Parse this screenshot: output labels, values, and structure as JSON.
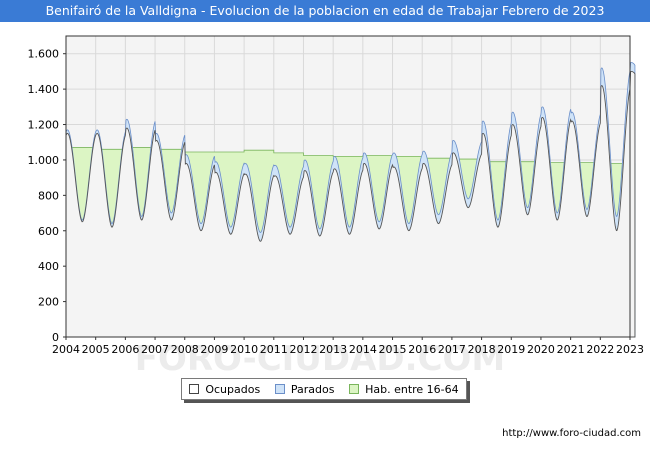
{
  "title": "Benifairó de la Valldigna - Evolucion de la poblacion en edad de Trabajar Febrero de 2023",
  "source": "http://www.foro-ciudad.com",
  "watermark": "FORO-CIUDAD.COM",
  "colors": {
    "title_bg": "#3a7bd5",
    "ocupados_fill": "#ffffff",
    "ocupados_line": "#555555",
    "parados_fill": "#cfe3f8",
    "parados_line": "#6b8fc9",
    "hab_fill": "#dcf5c4",
    "hab_line": "#7ab55c",
    "plot_bg": "#f4f4f4",
    "grid": "#d9d9d9"
  },
  "legend": {
    "ocupados": "Ocupados",
    "parados": "Parados",
    "hab": "Hab. entre 16-64"
  },
  "chart_data": {
    "type": "area",
    "x_axis": {
      "min": 2004,
      "max": 2023,
      "ticks": [
        "2004",
        "2005",
        "2006",
        "2007",
        "2008",
        "2009",
        "2010",
        "2011",
        "2012",
        "2013",
        "2014",
        "2015",
        "2016",
        "2017",
        "2018",
        "2019",
        "2020",
        "2021",
        "2022",
        "2023"
      ]
    },
    "y_axis": {
      "min": 0,
      "max": 1700,
      "ticks": [
        0,
        200,
        400,
        600,
        800,
        1000,
        1200,
        1400,
        1600
      ],
      "tick_labels": [
        "0",
        "200",
        "400",
        "600",
        "800",
        "1.000",
        "1.200",
        "1.400",
        "1.600"
      ]
    },
    "grid": true,
    "legend_position": "bottom",
    "series": [
      {
        "name": "Hab. entre 16-64",
        "key": "hab",
        "x": [
          2004,
          2005,
          2006,
          2007,
          2008,
          2009,
          2010,
          2011,
          2012,
          2013,
          2014,
          2015,
          2016,
          2017,
          2018,
          2019,
          2020,
          2021,
          2022,
          2023
        ],
        "values": [
          1070,
          1060,
          1070,
          1060,
          1045,
          1045,
          1055,
          1040,
          1025,
          1020,
          1025,
          1020,
          1010,
          1005,
          990,
          990,
          985,
          985,
          980,
          980
        ]
      },
      {
        "name": "Parados",
        "key": "parados",
        "annual": [
          {
            "year": 2004,
            "high": 1170,
            "low": 660
          },
          {
            "year": 2005,
            "high": 1170,
            "low": 640
          },
          {
            "year": 2006,
            "high": 1230,
            "low": 680
          },
          {
            "year": 2007,
            "high": 1150,
            "low": 700
          },
          {
            "year": 2008,
            "high": 1030,
            "low": 640
          },
          {
            "year": 2009,
            "high": 990,
            "low": 620
          },
          {
            "year": 2010,
            "high": 980,
            "low": 590
          },
          {
            "year": 2011,
            "high": 970,
            "low": 620
          },
          {
            "year": 2012,
            "high": 1000,
            "low": 610
          },
          {
            "year": 2013,
            "high": 1020,
            "low": 620
          },
          {
            "year": 2014,
            "high": 1040,
            "low": 650
          },
          {
            "year": 2015,
            "high": 1040,
            "low": 640
          },
          {
            "year": 2016,
            "high": 1050,
            "low": 690
          },
          {
            "year": 2017,
            "high": 1110,
            "low": 780
          },
          {
            "year": 2018,
            "high": 1220,
            "low": 660
          },
          {
            "year": 2019,
            "high": 1270,
            "low": 730
          },
          {
            "year": 2020,
            "high": 1300,
            "low": 700
          },
          {
            "year": 2021,
            "high": 1270,
            "low": 720
          },
          {
            "year": 2022,
            "high": 1520,
            "low": 680
          },
          {
            "year": 2023,
            "high": 1550,
            "low": 1420
          }
        ]
      },
      {
        "name": "Ocupados",
        "key": "ocupados",
        "annual": [
          {
            "year": 2004,
            "high": 1150,
            "low": 650
          },
          {
            "year": 2005,
            "high": 1150,
            "low": 620
          },
          {
            "year": 2006,
            "high": 1180,
            "low": 660
          },
          {
            "year": 2007,
            "high": 1110,
            "low": 660
          },
          {
            "year": 2008,
            "high": 980,
            "low": 600
          },
          {
            "year": 2009,
            "high": 930,
            "low": 580
          },
          {
            "year": 2010,
            "high": 920,
            "low": 540
          },
          {
            "year": 2011,
            "high": 910,
            "low": 580
          },
          {
            "year": 2012,
            "high": 940,
            "low": 570
          },
          {
            "year": 2013,
            "high": 950,
            "low": 580
          },
          {
            "year": 2014,
            "high": 980,
            "low": 610
          },
          {
            "year": 2015,
            "high": 960,
            "low": 600
          },
          {
            "year": 2016,
            "high": 980,
            "low": 640
          },
          {
            "year": 2017,
            "high": 1040,
            "low": 730
          },
          {
            "year": 2018,
            "high": 1150,
            "low": 620
          },
          {
            "year": 2019,
            "high": 1200,
            "low": 690
          },
          {
            "year": 2020,
            "high": 1240,
            "low": 660
          },
          {
            "year": 2021,
            "high": 1220,
            "low": 680
          },
          {
            "year": 2022,
            "high": 1420,
            "low": 600
          },
          {
            "year": 2023,
            "high": 1500,
            "low": 1380
          }
        ]
      }
    ]
  }
}
